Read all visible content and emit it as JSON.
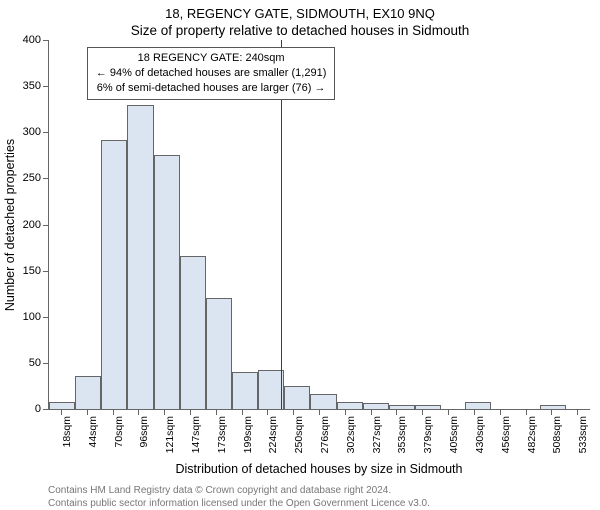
{
  "title_line1": "18, REGENCY GATE, SIDMOUTH, EX10 9NQ",
  "title_line2": "Size of property relative to detached houses in Sidmouth",
  "ylabel": "Number of detached properties",
  "xlabel": "Distribution of detached houses by size in Sidmouth",
  "footer_line1": "Contains HM Land Registry data © Crown copyright and database right 2024.",
  "footer_line2": "Contains public sector information licensed under the Open Government Licence v3.0.",
  "info_box": {
    "line1": "18 REGENCY GATE: 240sqm",
    "line2": "← 94% of detached houses are smaller (1,291)",
    "line3": "6% of semi-detached houses are larger (76) →",
    "left_pct": 7,
    "top_pct": 2
  },
  "chart": {
    "type": "histogram",
    "ylim": [
      0,
      400
    ],
    "ytick_step": 50,
    "bar_fill": "#dbe5f1",
    "bar_stroke": "#666666",
    "background": "#ffffff",
    "marker": {
      "position_bin_index": 9,
      "color": "#cc0000"
    },
    "categories": [
      "18sqm",
      "44sqm",
      "70sqm",
      "96sqm",
      "121sqm",
      "147sqm",
      "173sqm",
      "199sqm",
      "224sqm",
      "250sqm",
      "276sqm",
      "302sqm",
      "327sqm",
      "353sqm",
      "379sqm",
      "405sqm",
      "430sqm",
      "456sqm",
      "482sqm",
      "508sqm",
      "533sqm"
    ],
    "values": [
      8,
      36,
      292,
      330,
      275,
      166,
      120,
      40,
      42,
      25,
      16,
      8,
      6,
      4,
      4,
      0,
      8,
      0,
      0,
      4,
      0
    ]
  }
}
